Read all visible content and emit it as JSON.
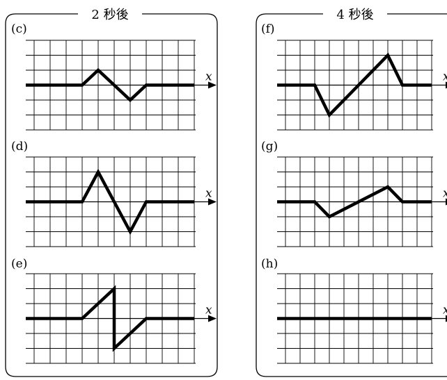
{
  "groups": [
    {
      "title": "2 秒後",
      "panels": [
        "c",
        "d",
        "e"
      ]
    },
    {
      "title": "4 秒後",
      "panels": [
        "f",
        "g",
        "h"
      ]
    }
  ],
  "panels": [
    {
      "label": "(c)",
      "axis_label": "x",
      "wave": [
        [
          0,
          0
        ],
        [
          3,
          0
        ],
        [
          4,
          1
        ],
        [
          6,
          -1
        ],
        [
          7,
          0
        ],
        [
          10,
          0
        ]
      ]
    },
    {
      "label": "(d)",
      "axis_label": "x",
      "wave": [
        [
          0,
          0
        ],
        [
          3,
          0
        ],
        [
          4,
          2
        ],
        [
          6,
          -2
        ],
        [
          7,
          0
        ],
        [
          10,
          0
        ]
      ]
    },
    {
      "label": "(e)",
      "axis_label": "x",
      "wave": [
        [
          0,
          0
        ],
        [
          3,
          0
        ],
        [
          5,
          2
        ],
        [
          5,
          -2
        ],
        [
          7,
          0
        ],
        [
          10,
          0
        ]
      ]
    },
    {
      "label": "(f)",
      "axis_label": "x",
      "wave": [
        [
          0,
          0
        ],
        [
          2,
          0
        ],
        [
          3,
          -2
        ],
        [
          7,
          2
        ],
        [
          8,
          0
        ],
        [
          10,
          0
        ]
      ]
    },
    {
      "label": "(g)",
      "axis_label": "x",
      "wave": [
        [
          0,
          0
        ],
        [
          2,
          0
        ],
        [
          3,
          -1
        ],
        [
          7,
          1
        ],
        [
          8,
          0
        ],
        [
          10,
          0
        ]
      ]
    },
    {
      "label": "(h)",
      "axis_label": "x",
      "wave": [
        [
          0,
          0
        ],
        [
          10,
          0
        ]
      ]
    }
  ]
}
